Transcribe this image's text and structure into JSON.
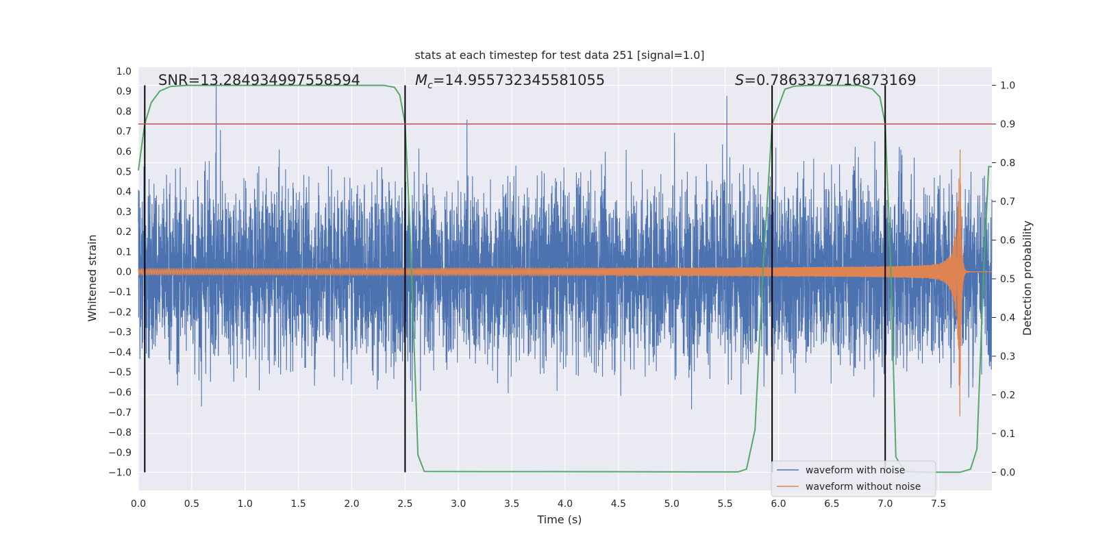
{
  "chart_data": {
    "type": "line",
    "title": "stats at each timestep for test data 251 [signal=1.0]",
    "xlabel": "Time (s)",
    "ylabel": "Whitened strain",
    "y2label": "Detection probability",
    "xlim": [
      0,
      8
    ],
    "ylim": [
      -1.09,
      1.02
    ],
    "y2lim": [
      -0.047,
      1.047
    ],
    "xticks": [
      "0.0",
      "0.5",
      "1.0",
      "1.5",
      "2.0",
      "2.5",
      "3.0",
      "3.5",
      "4.0",
      "4.5",
      "5.0",
      "5.5",
      "6.0",
      "6.5",
      "7.0",
      "7.5"
    ],
    "yticks": [
      "1.0",
      "0.9",
      "0.8",
      "0.7",
      "0.6",
      "0.5",
      "0.4",
      "0.3",
      "0.2",
      "0.1",
      "0.0",
      "−0.1",
      "−0.2",
      "−0.3",
      "−0.4",
      "−0.5",
      "−0.6",
      "−0.7",
      "−0.8",
      "−0.9",
      "−1.0"
    ],
    "y2ticks": [
      "1.0",
      "0.9",
      "0.8",
      "0.7",
      "0.6",
      "0.5",
      "0.4",
      "0.3",
      "0.2",
      "0.1",
      "0.0"
    ],
    "annotations": {
      "snr": "SNR=13.284934997558594",
      "mc_symbol": "M",
      "mc_sub": "c",
      "mc_value": "=14.955732345581055",
      "s_symbol": "S",
      "s_value": "=0.7863379716873169"
    },
    "threshold": {
      "value": 0.9,
      "axis": "right",
      "color": "#c44e52"
    },
    "vertical_markers": [
      0.06,
      2.5,
      5.94,
      7.0
    ],
    "series": [
      {
        "name": "waveform with noise",
        "color": "#4c72b0",
        "description_stats": {
          "typical_amplitude": 0.45,
          "max_amplitude": 0.97
        }
      },
      {
        "name": "waveform without noise",
        "color": "#dd8452",
        "chirp_start": 0.0,
        "merger_time": 7.7,
        "merger_peak": 0.65,
        "merger_trough": -0.72,
        "start_amplitude": 0.015
      },
      {
        "name": "detection probability",
        "color": "#55a868",
        "axis": "right",
        "x": [
          0.0,
          0.06,
          0.12,
          0.2,
          0.3,
          0.45,
          2.3,
          2.4,
          2.45,
          2.5,
          2.55,
          2.62,
          2.68,
          5.62,
          5.7,
          5.78,
          5.86,
          5.94,
          6.0,
          6.06,
          6.15,
          6.3,
          6.75,
          6.88,
          6.95,
          7.0,
          7.05,
          7.1,
          7.18,
          7.4,
          7.6,
          7.7,
          7.8,
          7.86,
          7.92,
          7.97,
          8.0
        ],
        "y": [
          0.78,
          0.9,
          0.955,
          0.985,
          0.997,
          1.0,
          1.0,
          0.995,
          0.975,
          0.9,
          0.6,
          0.045,
          0.002,
          0.001,
          0.008,
          0.11,
          0.55,
          0.9,
          0.945,
          0.99,
          0.998,
          1.0,
          1.0,
          0.99,
          0.97,
          0.9,
          0.55,
          0.04,
          0.002,
          0.0,
          0.0,
          0.0,
          0.008,
          0.06,
          0.5,
          0.79,
          0.79
        ]
      }
    ],
    "legend": {
      "position": "lower-right",
      "entries": [
        "waveform with noise",
        "waveform without noise"
      ]
    }
  }
}
